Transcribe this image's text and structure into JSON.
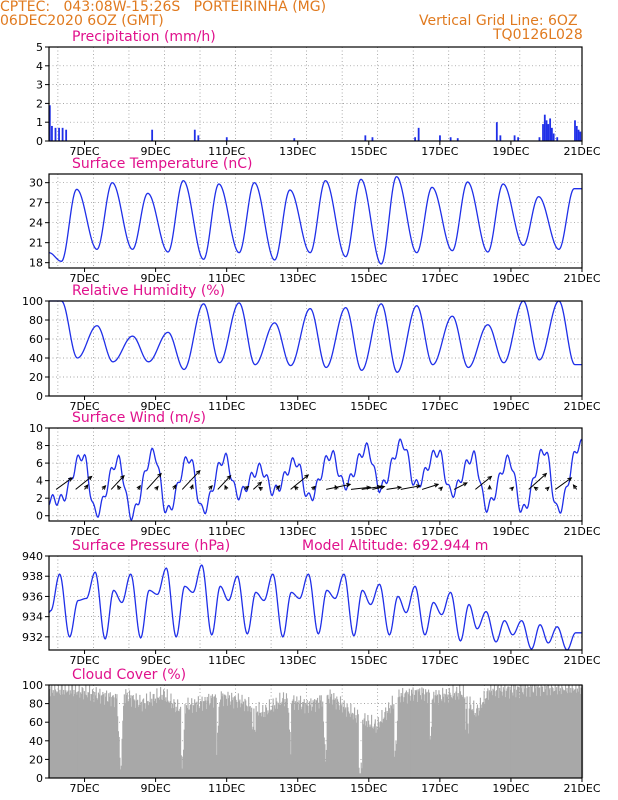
{
  "header": {
    "line1_left": "CPTEC:   043:08W-15:26S   PORTEIRINHA (MG)",
    "line2_left": "06DEC2020 6OZ (GMT)",
    "line1_right": "Vertical Grid Line: 6OZ",
    "line2_right": "TQ0126L028"
  },
  "colors": {
    "header": "#e07a1f",
    "panel_title": "#e0118c",
    "series": "#1f2fe8",
    "cloud": "#a8a8a8"
  },
  "chart_data": [
    {
      "type": "bar",
      "title": "Precipitation (mm/h)",
      "x_ticks": [
        "7DEC",
        "9DEC",
        "11DEC",
        "13DEC",
        "15DEC",
        "17DEC",
        "19DEC",
        "21DEC"
      ],
      "y_ticks": [
        0,
        1,
        2,
        3,
        4,
        5
      ],
      "ylim": [
        0,
        5
      ],
      "grid": true,
      "events": [
        {
          "day": 6.02,
          "value": 1.9
        },
        {
          "day": 6.08,
          "value": 0.8
        },
        {
          "day": 6.18,
          "value": 0.7
        },
        {
          "day": 6.28,
          "value": 0.7
        },
        {
          "day": 6.38,
          "value": 0.7
        },
        {
          "day": 6.48,
          "value": 0.6
        },
        {
          "day": 8.9,
          "value": 0.6
        },
        {
          "day": 10.1,
          "value": 0.6
        },
        {
          "day": 10.2,
          "value": 0.3
        },
        {
          "day": 11.0,
          "value": 0.2
        },
        {
          "day": 12.9,
          "value": 0.15
        },
        {
          "day": 14.9,
          "value": 0.3
        },
        {
          "day": 15.1,
          "value": 0.2
        },
        {
          "day": 16.3,
          "value": 0.2
        },
        {
          "day": 16.4,
          "value": 0.7
        },
        {
          "day": 17.0,
          "value": 0.3
        },
        {
          "day": 17.3,
          "value": 0.2
        },
        {
          "day": 17.5,
          "value": 0.15
        },
        {
          "day": 18.6,
          "value": 1.0
        },
        {
          "day": 18.7,
          "value": 0.3
        },
        {
          "day": 19.1,
          "value": 0.3
        },
        {
          "day": 19.2,
          "value": 0.2
        },
        {
          "day": 19.8,
          "value": 0.2
        },
        {
          "day": 19.9,
          "value": 0.9
        },
        {
          "day": 19.95,
          "value": 1.4
        },
        {
          "day": 20.0,
          "value": 1.1
        },
        {
          "day": 20.05,
          "value": 0.9
        },
        {
          "day": 20.1,
          "value": 1.2
        },
        {
          "day": 20.15,
          "value": 0.7
        },
        {
          "day": 20.2,
          "value": 0.4
        },
        {
          "day": 20.3,
          "value": 0.2
        },
        {
          "day": 20.8,
          "value": 1.1
        },
        {
          "day": 20.85,
          "value": 0.8
        },
        {
          "day": 20.9,
          "value": 0.6
        },
        {
          "day": 20.95,
          "value": 0.5
        }
      ]
    },
    {
      "type": "line",
      "title": "Surface Temperature (nC)",
      "x_ticks": [
        "7DEC",
        "9DEC",
        "11DEC",
        "13DEC",
        "15DEC",
        "17DEC",
        "19DEC",
        "21DEC"
      ],
      "y_ticks": [
        18,
        21,
        24,
        27,
        30
      ],
      "ylim": [
        17.2,
        31.3
      ],
      "grid": true,
      "mins": [
        18.2,
        20.0,
        20.0,
        19.6,
        18.5,
        19.5,
        18.4,
        19.5,
        18.9,
        17.8,
        19.5,
        19.8,
        19.6,
        20.6,
        20.0
      ],
      "maxs": [
        29.0,
        30.0,
        28.4,
        30.3,
        29.8,
        30.0,
        28.9,
        30.3,
        30.5,
        30.9,
        29.3,
        30.1,
        29.8,
        27.9,
        29.1
      ]
    },
    {
      "type": "line",
      "title": "Relative Humidity (%)",
      "x_ticks": [
        "7DEC",
        "9DEC",
        "11DEC",
        "13DEC",
        "15DEC",
        "17DEC",
        "19DEC",
        "21DEC"
      ],
      "y_ticks": [
        0,
        20,
        40,
        60,
        80,
        100
      ],
      "ylim": [
        0,
        100
      ],
      "grid": true,
      "maxs": [
        100,
        74,
        63,
        67,
        97,
        98,
        77,
        92,
        93,
        97,
        95,
        84,
        75,
        100,
        100
      ],
      "mins": [
        40,
        36,
        36,
        28,
        35,
        33,
        32,
        30,
        27,
        25,
        33,
        30,
        35,
        38,
        33
      ]
    },
    {
      "type": "line",
      "title": "Surface Wind (m/s)",
      "x_ticks": [
        "7DEC",
        "9DEC",
        "11DEC",
        "13DEC",
        "15DEC",
        "17DEC",
        "19DEC",
        "21DEC"
      ],
      "y_ticks": [
        0,
        2,
        4,
        6,
        8,
        10
      ],
      "ylim": [
        -0.6,
        10
      ],
      "grid": true,
      "maxs": [
        6.9,
        6.3,
        7.2,
        6.6,
        6.6,
        5.4,
        6.2,
        7.0,
        7.7,
        8.3,
        7.3,
        6.8,
        6.4,
        7.5,
        8.1
      ],
      "mins": [
        1.8,
        0.3,
        0.1,
        0.5,
        0.6,
        2.4,
        2.8,
        2.0,
        3.5,
        3.2,
        3.5,
        2.6,
        1.0,
        0.6,
        0.6
      ],
      "arrows": [
        {
          "day": 6.2,
          "u": 2.0,
          "v": 1.6
        },
        {
          "day": 6.75,
          "u": 2.0,
          "v": 1.8
        },
        {
          "day": 7.0,
          "u": 0.4,
          "v": 0.6
        },
        {
          "day": 7.5,
          "u": 0.4,
          "v": 0.5
        },
        {
          "day": 7.75,
          "u": 1.6,
          "v": 1.9
        },
        {
          "day": 8.0,
          "u": -0.3,
          "v": 0.5
        },
        {
          "day": 8.5,
          "u": 0.3,
          "v": 0.5
        },
        {
          "day": 8.75,
          "u": 1.8,
          "v": 2.2
        },
        {
          "day": 9.0,
          "u": 0.3,
          "v": 0.4
        },
        {
          "day": 9.5,
          "u": 0.3,
          "v": 0.6
        },
        {
          "day": 9.75,
          "u": 2.2,
          "v": 2.6
        },
        {
          "day": 10.0,
          "u": 0.2,
          "v": 0.6
        },
        {
          "day": 10.5,
          "u": 0.4,
          "v": 0.5
        },
        {
          "day": 10.75,
          "u": 1.6,
          "v": 1.9
        },
        {
          "day": 11.0,
          "u": -0.2,
          "v": 0.5
        },
        {
          "day": 11.5,
          "u": 0.5,
          "v": 0.4
        },
        {
          "day": 11.75,
          "u": 1.0,
          "v": 1.0
        },
        {
          "day": 12.0,
          "u": -0.4,
          "v": 0.3
        },
        {
          "day": 12.4,
          "u": 0.4,
          "v": 0.5
        },
        {
          "day": 12.8,
          "u": 2.2,
          "v": 2.0
        },
        {
          "day": 13.0,
          "u": -0.4,
          "v": 0.4
        },
        {
          "day": 13.4,
          "u": 0.4,
          "v": 0.4
        },
        {
          "day": 13.8,
          "u": 3.0,
          "v": 0.7
        },
        {
          "day": 14.1,
          "u": -0.2,
          "v": 0.5
        },
        {
          "day": 14.5,
          "u": 2.4,
          "v": 0.3
        },
        {
          "day": 14.8,
          "u": 2.4,
          "v": 0.4
        },
        {
          "day": 15.1,
          "u": 1.5,
          "v": 0.4
        },
        {
          "day": 15.5,
          "u": 1.8,
          "v": 0.3
        },
        {
          "day": 15.9,
          "u": 2.4,
          "v": 0.5
        },
        {
          "day": 16.5,
          "u": 2.0,
          "v": 0.7
        },
        {
          "day": 17.0,
          "u": 0.3,
          "v": 0.3
        },
        {
          "day": 17.4,
          "u": 1.6,
          "v": 0.9
        },
        {
          "day": 18.0,
          "u": 2.0,
          "v": 1.8
        },
        {
          "day": 18.4,
          "u": 0.0,
          "v": 0.5
        },
        {
          "day": 19.0,
          "u": 0.3,
          "v": 0.3
        },
        {
          "day": 19.5,
          "u": 2.2,
          "v": 2.2
        },
        {
          "day": 19.75,
          "u": -0.4,
          "v": 0.3
        },
        {
          "day": 20.0,
          "u": 0.3,
          "v": 0.3
        },
        {
          "day": 20.25,
          "u": 2.0,
          "v": 1.6
        },
        {
          "day": 20.85,
          "u": -0.4,
          "v": 0.6
        }
      ]
    },
    {
      "type": "line",
      "title": "Surface Pressure (hPa)",
      "annotation": "Model Altitude: 692.944 m",
      "x_ticks": [
        "7DEC",
        "9DEC",
        "11DEC",
        "13DEC",
        "15DEC",
        "17DEC",
        "19DEC",
        "21DEC"
      ],
      "y_ticks": [
        932,
        934,
        936,
        938,
        940
      ],
      "ylim": [
        930.7,
        940
      ],
      "grid": true,
      "mins": [
        932.0,
        931.8,
        931.9,
        932.0,
        932.2,
        932.3,
        932.0,
        932.3,
        932.1,
        932.2,
        932.2,
        931.6,
        931.5,
        930.8,
        930.7
      ],
      "maxs": [
        938.2,
        938.4,
        938.2,
        938.8,
        939.1,
        938.0,
        938.2,
        938.2,
        938.2,
        937.2,
        937.0,
        936.4,
        934.5,
        933.6,
        933.0
      ],
      "mid_min": [
        934.6,
        935.8,
        935.4,
        936.2,
        936.4,
        935.6,
        935.6,
        935.8,
        935.8,
        935.2,
        934.4,
        934.2,
        932.8,
        932.2,
        931.4
      ],
      "mid_max": [
        935.6,
        936.6,
        936.6,
        937.0,
        937.0,
        936.4,
        936.4,
        936.6,
        936.6,
        936.0,
        935.4,
        935.2,
        933.6,
        933.2,
        932.4
      ]
    },
    {
      "type": "bar",
      "title": "Cloud Cover (%)",
      "x_ticks": [
        "7DEC",
        "9DEC",
        "11DEC",
        "13DEC",
        "15DEC",
        "17DEC",
        "19DEC",
        "21DEC"
      ],
      "y_ticks": [
        0,
        20,
        40,
        60,
        80,
        100
      ],
      "ylim": [
        0,
        100
      ],
      "grid": true,
      "profile": [
        {
          "day": 6.0,
          "value": 95
        },
        {
          "day": 6.6,
          "value": 95
        },
        {
          "day": 7.3,
          "value": 90
        },
        {
          "day": 7.9,
          "value": 85
        },
        {
          "day": 8.0,
          "value": 5
        },
        {
          "day": 8.1,
          "value": 90
        },
        {
          "day": 8.6,
          "value": 80
        },
        {
          "day": 9.2,
          "value": 90
        },
        {
          "day": 9.6,
          "value": 75
        },
        {
          "day": 10.2,
          "value": 80
        },
        {
          "day": 10.8,
          "value": 88
        },
        {
          "day": 11.4,
          "value": 82
        },
        {
          "day": 12.0,
          "value": 70
        },
        {
          "day": 12.6,
          "value": 85
        },
        {
          "day": 13.3,
          "value": 78
        },
        {
          "day": 13.9,
          "value": 88
        },
        {
          "day": 14.5,
          "value": 70
        },
        {
          "day": 15.2,
          "value": 55
        },
        {
          "day": 15.8,
          "value": 88
        },
        {
          "day": 16.4,
          "value": 92
        },
        {
          "day": 17.0,
          "value": 88
        },
        {
          "day": 17.6,
          "value": 92
        },
        {
          "day": 18.0,
          "value": 70
        },
        {
          "day": 18.4,
          "value": 95
        },
        {
          "day": 19.0,
          "value": 95
        },
        {
          "day": 19.6,
          "value": 97
        },
        {
          "day": 20.2,
          "value": 97
        },
        {
          "day": 21.0,
          "value": 97
        }
      ]
    }
  ]
}
